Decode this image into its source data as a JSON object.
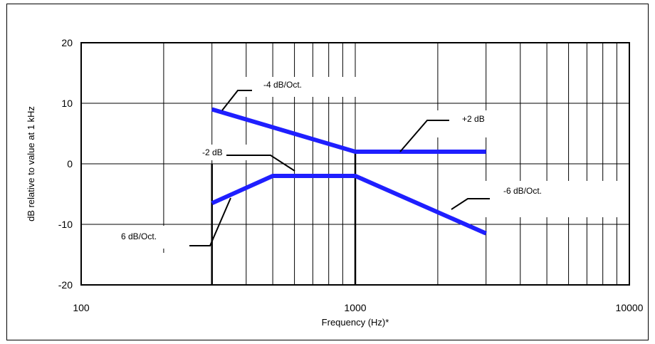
{
  "chart_data": {
    "type": "line",
    "xlabel": "Frequency (Hz)*",
    "ylabel": "dB relative to value at 1 kHz",
    "x_scale": "log",
    "xlim": [
      100,
      10000
    ],
    "ylim": [
      -20,
      20
    ],
    "x_ticks": [
      "100",
      "1000",
      "10000"
    ],
    "y_ticks": [
      "20",
      "10",
      "0",
      "-10",
      "-20"
    ],
    "grid": true,
    "series": [
      {
        "role": "upper-limit",
        "color": "#1f1fff",
        "x": [
          300,
          1000,
          3000
        ],
        "y": [
          9,
          2,
          2
        ]
      },
      {
        "role": "lower-limit",
        "color": "#1f1fff",
        "x": [
          300,
          500,
          1000,
          3000
        ],
        "y": [
          -6.5,
          -2,
          -2,
          -11.5
        ]
      }
    ],
    "vertical_limit_lines": [
      300,
      1000
    ],
    "annotations": [
      {
        "text": "-4 dB/Oct."
      },
      {
        "text": "+2 dB"
      },
      {
        "text": "-2 dB"
      },
      {
        "text": "-6 dB/Oct."
      },
      {
        "text": "6 dB/Oct."
      }
    ]
  }
}
